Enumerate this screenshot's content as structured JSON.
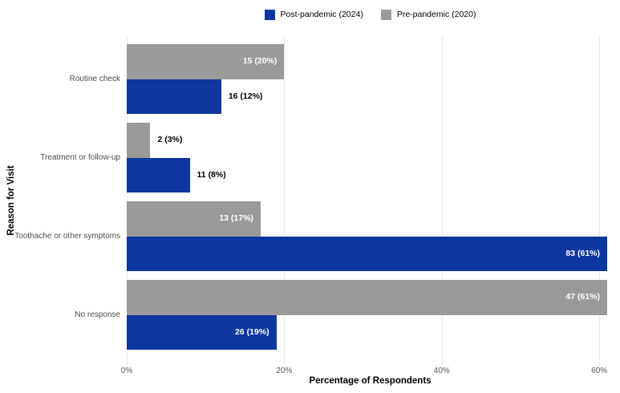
{
  "axes": {
    "x_label": "Percentage of Respondents",
    "y_label": "Reason for Visit"
  },
  "colors": {
    "post_pandemic_blue": "#0D36A0",
    "pre_pandemic_gray": "#9A9A9A",
    "gridline": "#E8E8E8",
    "label_inside": "#FFFFFF",
    "label_outside": "#000000",
    "tick_text": "#555555",
    "category_text": "#4D4D4D"
  },
  "chart_data": {
    "type": "bar",
    "orientation": "horizontal",
    "title": "",
    "xlabel": "Percentage of Respondents",
    "ylabel": "Reason for Visit",
    "x_range": [
      0,
      62
    ],
    "grid": true,
    "legend_position": "top-center",
    "x_ticks": [
      {
        "pct": 0,
        "label": "0%"
      },
      {
        "pct": 20,
        "label": "20%"
      },
      {
        "pct": 40,
        "label": "40%"
      },
      {
        "pct": 60,
        "label": "60%"
      }
    ],
    "categories": [
      "Routine check",
      "Treatment or follow-up",
      "Toothache or other symptoms",
      "No response"
    ],
    "series": [
      {
        "name": "Post-pandemic (2024)",
        "color": "#0D36A0",
        "points": [
          {
            "count": 16,
            "pct": 12,
            "label": "16 (12%)",
            "label_inside": false
          },
          {
            "count": 11,
            "pct": 8,
            "label": "11 (8%)",
            "label_inside": false
          },
          {
            "count": 83,
            "pct": 61,
            "label": "83 (61%)",
            "label_inside": true
          },
          {
            "count": 26,
            "pct": 19,
            "label": "26 (19%)",
            "label_inside": true
          }
        ]
      },
      {
        "name": "Pre-pandemic (2020)",
        "color": "#9A9A9A",
        "points": [
          {
            "count": 15,
            "pct": 20,
            "label": "15 (20%)",
            "label_inside": true
          },
          {
            "count": 2,
            "pct": 3,
            "label": "2 (3%)",
            "label_inside": false
          },
          {
            "count": 13,
            "pct": 17,
            "label": "13 (17%)",
            "label_inside": true
          },
          {
            "count": 47,
            "pct": 61,
            "label": "47 (61%)",
            "label_inside": true
          }
        ]
      }
    ],
    "row_order_within_group": [
      1,
      0
    ]
  }
}
